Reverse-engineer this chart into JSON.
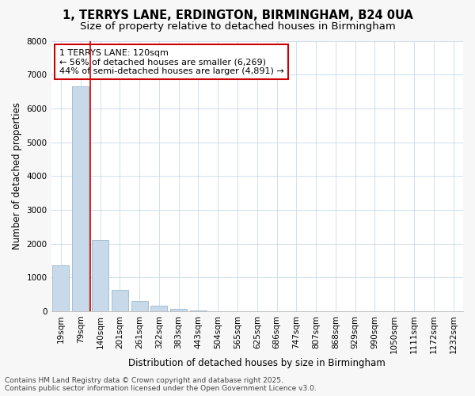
{
  "title1": "1, TERRYS LANE, ERDINGTON, BIRMINGHAM, B24 0UA",
  "title2": "Size of property relative to detached houses in Birmingham",
  "xlabel": "Distribution of detached houses by size in Birmingham",
  "ylabel": "Number of detached properties",
  "categories": [
    "19sqm",
    "79sqm",
    "140sqm",
    "201sqm",
    "261sqm",
    "322sqm",
    "383sqm",
    "443sqm",
    "504sqm",
    "565sqm",
    "625sqm",
    "686sqm",
    "747sqm",
    "807sqm",
    "868sqm",
    "929sqm",
    "990sqm",
    "1050sqm",
    "1111sqm",
    "1172sqm",
    "1232sqm"
  ],
  "values": [
    1350,
    6650,
    2100,
    640,
    310,
    150,
    60,
    20,
    5,
    0,
    0,
    0,
    0,
    0,
    0,
    0,
    0,
    0,
    0,
    0,
    0
  ],
  "bar_color": "#c8daea",
  "bar_edgecolor": "#9ab8d0",
  "vline_color": "#cc0000",
  "vline_pos": 1.5,
  "annotation_text": "1 TERRYS LANE: 120sqm\n← 56% of detached houses are smaller (6,269)\n44% of semi-detached houses are larger (4,891) →",
  "annotation_box_facecolor": "#ffffff",
  "annotation_box_edgecolor": "#cc0000",
  "ylim": [
    0,
    8000
  ],
  "yticks": [
    0,
    1000,
    2000,
    3000,
    4000,
    5000,
    6000,
    7000,
    8000
  ],
  "footnote": "Contains HM Land Registry data © Crown copyright and database right 2025.\nContains public sector information licensed under the Open Government Licence v3.0.",
  "bg_color": "#f7f7f7",
  "plot_bg_color": "#ffffff",
  "grid_color": "#c8daea",
  "title1_fontsize": 10.5,
  "title2_fontsize": 9.5,
  "axis_label_fontsize": 8.5,
  "tick_fontsize": 7.5,
  "annotation_fontsize": 8,
  "footnote_fontsize": 6.5
}
